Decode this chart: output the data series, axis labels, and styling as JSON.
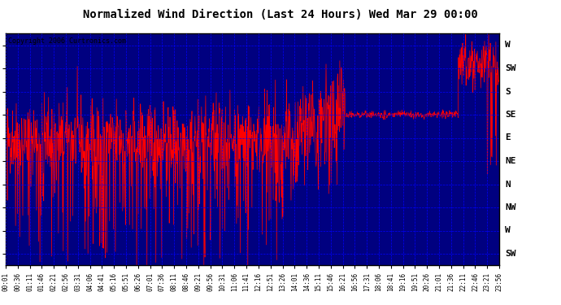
{
  "title": "Normalized Wind Direction (Last 24 Hours) Wed Mar 29 00:00",
  "copyright": "Copyright 2006 Curtronics.com",
  "fig_bg_color": "#ffffff",
  "plot_bg_color": "#000080",
  "line_color": "#ff0000",
  "grid_color": "#0000ff",
  "title_color": "#000000",
  "y_labels": [
    "W",
    "SW",
    "S",
    "SE",
    "E",
    "NE",
    "N",
    "NW",
    "W",
    "SW"
  ],
  "y_values": [
    10,
    9,
    8,
    7,
    6,
    5,
    4,
    3,
    2,
    1
  ],
  "ylim": [
    0.5,
    10.5
  ],
  "x_tick_labels": [
    "00:01",
    "00:36",
    "01:11",
    "01:46",
    "02:21",
    "02:56",
    "03:31",
    "04:06",
    "04:41",
    "05:16",
    "05:51",
    "06:26",
    "07:01",
    "07:36",
    "08:11",
    "08:46",
    "09:21",
    "09:56",
    "10:31",
    "11:06",
    "11:41",
    "12:16",
    "12:51",
    "13:26",
    "14:01",
    "14:36",
    "15:11",
    "15:46",
    "16:21",
    "16:56",
    "17:31",
    "18:06",
    "18:41",
    "19:16",
    "19:51",
    "20:26",
    "21:01",
    "21:36",
    "22:11",
    "22:46",
    "23:21",
    "23:56"
  ],
  "figsize": [
    6.9,
    3.75
  ],
  "dpi": 100
}
